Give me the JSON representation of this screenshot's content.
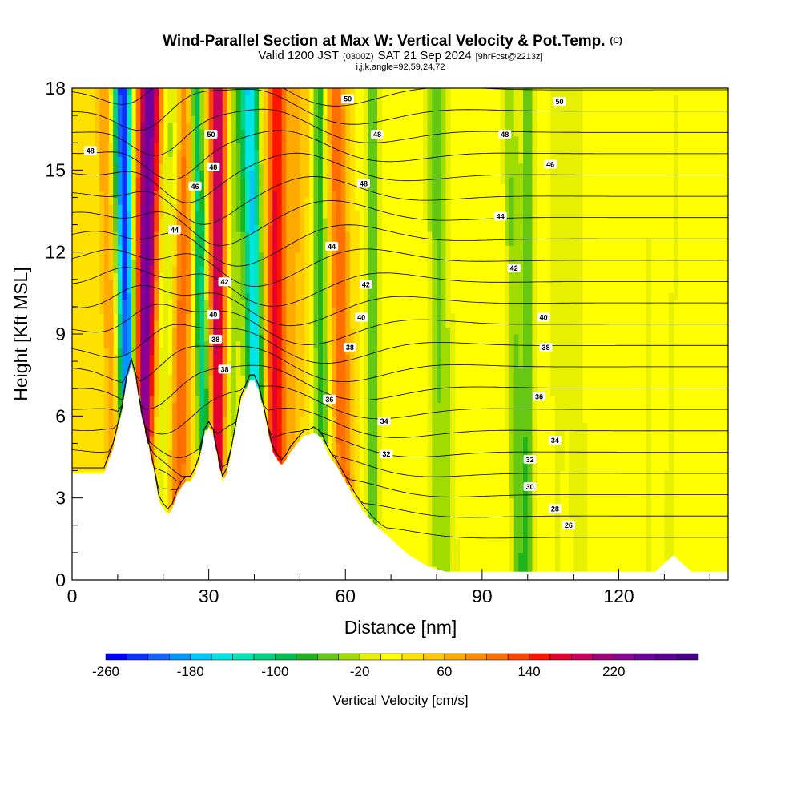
{
  "chart_data": {
    "type": "heatmap",
    "title": "Wind-Parallel Section at Max W: Vertical Velocity & Pot.Temp.",
    "title_mark": "(C)",
    "subtitle_main": "Valid 1200 JST",
    "subtitle_utc": "(0300Z)",
    "subtitle_date": "SAT 21 Sep 2024",
    "subtitle_fcst": "[9hrFcst@2213z]",
    "subtitle2": "i,j,k,angle=92,59,24,72",
    "xlabel": "Distance [nm]",
    "ylabel": "Height [Kft MSL]",
    "xlim": [
      0,
      144
    ],
    "ylim": [
      0,
      18
    ],
    "x_ticks": [
      0,
      30,
      60,
      90,
      120
    ],
    "y_ticks": [
      0,
      3,
      6,
      9,
      12,
      15,
      18
    ],
    "grid": false,
    "colorbar": {
      "label": "Vertical Velocity [cm/s]",
      "tick_labels": [
        "-260",
        "-180",
        "-100",
        "-20",
        "60",
        "140",
        "220"
      ],
      "tick_values": [
        -260,
        -180,
        -100,
        -20,
        60,
        140,
        220
      ],
      "min": -260,
      "max": 300,
      "step": 20,
      "colors": [
        "#0000ff",
        "#0a32ff",
        "#1464ff",
        "#0096ff",
        "#00c8ff",
        "#00e6e6",
        "#00e6b4",
        "#00d282",
        "#00be50",
        "#1eb41e",
        "#64c814",
        "#a0dc00",
        "#e6f000",
        "#ffff00",
        "#ffe100",
        "#ffc800",
        "#ffaa00",
        "#ff8c00",
        "#ff6e00",
        "#ff4600",
        "#ff1400",
        "#e6002d",
        "#c8005a",
        "#a00078",
        "#8c0096",
        "#6e00a0",
        "#5a0096",
        "#46008c"
      ]
    },
    "terrain_profile": {
      "x": [
        0,
        7,
        9,
        11,
        12,
        13,
        14,
        15,
        16,
        17,
        18,
        19,
        20,
        21,
        22,
        23,
        24,
        25,
        26,
        27,
        28,
        29,
        30,
        31,
        32,
        33,
        34,
        35,
        36,
        37,
        38,
        39,
        40,
        41,
        42,
        43,
        44,
        45,
        46,
        47,
        48,
        49,
        50,
        51,
        52,
        53,
        54,
        55,
        56,
        57,
        58,
        60,
        62,
        64,
        66,
        68,
        70,
        72,
        74,
        76,
        78,
        80,
        82,
        84,
        86,
        88,
        90,
        92,
        94,
        96,
        98,
        100,
        102,
        104,
        106,
        108,
        110,
        112,
        114,
        116,
        118,
        120,
        122,
        124,
        126,
        128,
        130,
        132,
        134,
        136,
        138,
        140,
        142,
        144
      ],
      "height_kft": [
        3.9,
        3.9,
        4.8,
        6.2,
        7.3,
        7.9,
        7.3,
        6.2,
        5.4,
        4.7,
        3.9,
        2.9,
        2.6,
        2.4,
        2.6,
        3.1,
        3.4,
        3.6,
        3.6,
        3.9,
        4.4,
        5.3,
        5.6,
        5.3,
        4.4,
        3.6,
        3.9,
        4.7,
        5.6,
        6.5,
        6.9,
        7.3,
        7.3,
        6.9,
        6.2,
        5.4,
        4.7,
        4.4,
        4.2,
        4.4,
        4.7,
        4.9,
        5.1,
        5.3,
        5.3,
        5.4,
        5.3,
        5.1,
        4.7,
        4.4,
        4.2,
        3.6,
        3.0,
        2.5,
        2.1,
        1.8,
        1.5,
        1.2,
        0.9,
        0.7,
        0.5,
        0.4,
        0.3,
        0.3,
        0.3,
        0.3,
        0.3,
        0.3,
        0.3,
        0.3,
        0.3,
        0.3,
        0.3,
        0.3,
        0.3,
        0.3,
        0.3,
        0.3,
        0.3,
        0.3,
        0.3,
        0.3,
        0.3,
        0.3,
        0.3,
        0.3,
        0.6,
        0.9,
        0.6,
        0.3,
        0.3,
        0.3,
        0.3,
        0.3
      ]
    },
    "w_features": [
      {
        "x_base": 13,
        "x_top": 11,
        "w": -260,
        "width": 2.0
      },
      {
        "x_base": 15,
        "x_top": 17,
        "w": 240,
        "width": 2.6
      },
      {
        "x_base": 10,
        "x_top": 7,
        "w": 60,
        "width": 1.8
      },
      {
        "x_base": 18,
        "x_top": 22,
        "w": -60,
        "width": 2.5
      },
      {
        "x_base": 23,
        "x_top": 25,
        "w": 100,
        "width": 2.2
      },
      {
        "x_base": 30,
        "x_top": 27,
        "w": -140,
        "width": 1.6
      },
      {
        "x_base": 32,
        "x_top": 32,
        "w": 180,
        "width": 2.0
      },
      {
        "x_base": 34,
        "x_top": 36,
        "w": -60,
        "width": 2.0
      },
      {
        "x_base": 41,
        "x_top": 39,
        "w": -180,
        "width": 2.0
      },
      {
        "x_base": 44,
        "x_top": 45,
        "w": 140,
        "width": 2.2
      },
      {
        "x_base": 47,
        "x_top": 50,
        "w": 40,
        "width": 3.0
      },
      {
        "x_base": 55,
        "x_top": 54,
        "w": -100,
        "width": 1.5
      },
      {
        "x_base": 60,
        "x_top": 58,
        "w": 100,
        "width": 2.0
      },
      {
        "x_base": 66,
        "x_top": 66,
        "w": -80,
        "width": 1.8
      },
      {
        "x_base": 80,
        "x_top": 80,
        "w": -40,
        "width": 2.5
      },
      {
        "x_base": 83,
        "x_top": 80,
        "w": -30,
        "width": 2.5
      },
      {
        "x_base": 98,
        "x_top": 96,
        "w": -60,
        "width": 1.8
      },
      {
        "x_base": 100,
        "x_top": 100,
        "w": -70,
        "width": 1.5
      },
      {
        "x_base": 106,
        "x_top": 106,
        "w": -20,
        "width": 4.0
      },
      {
        "x_base": 112,
        "x_top": 111,
        "w": -20,
        "width": 3.0
      },
      {
        "x_base": 126,
        "x_top": 127,
        "w": -20,
        "width": 3.0
      },
      {
        "x_base": 131,
        "x_top": 133,
        "w": -20,
        "width": 2.5
      }
    ],
    "theta_levels": [
      28,
      29,
      30,
      31,
      32,
      33,
      34,
      35,
      36,
      37,
      38,
      39,
      40,
      41,
      42,
      43,
      44,
      45,
      46,
      47,
      48,
      49,
      50
    ],
    "theta_labels": [
      {
        "text": "48",
        "x": 4,
        "y": 15.7
      },
      {
        "text": "50",
        "x": 30.5,
        "y": 16.3
      },
      {
        "text": "48",
        "x": 31,
        "y": 15.1
      },
      {
        "text": "46",
        "x": 27,
        "y": 14.4
      },
      {
        "text": "44",
        "x": 22.5,
        "y": 12.8
      },
      {
        "text": "42",
        "x": 33.5,
        "y": 10.9
      },
      {
        "text": "40",
        "x": 31,
        "y": 9.7
      },
      {
        "text": "38",
        "x": 31.5,
        "y": 8.8
      },
      {
        "text": "38",
        "x": 33.5,
        "y": 7.7
      },
      {
        "text": "50",
        "x": 60.5,
        "y": 17.6
      },
      {
        "text": "48",
        "x": 67,
        "y": 16.3
      },
      {
        "text": "48",
        "x": 64,
        "y": 14.5
      },
      {
        "text": "44",
        "x": 57,
        "y": 12.2
      },
      {
        "text": "42",
        "x": 64.5,
        "y": 10.8
      },
      {
        "text": "40",
        "x": 63.5,
        "y": 9.6
      },
      {
        "text": "38",
        "x": 61,
        "y": 8.5
      },
      {
        "text": "36",
        "x": 56.5,
        "y": 6.6
      },
      {
        "text": "34",
        "x": 68.5,
        "y": 5.8
      },
      {
        "text": "32",
        "x": 69,
        "y": 4.6
      },
      {
        "text": "50",
        "x": 107,
        "y": 17.5
      },
      {
        "text": "48",
        "x": 95,
        "y": 16.3
      },
      {
        "text": "46",
        "x": 105,
        "y": 15.2
      },
      {
        "text": "44",
        "x": 94,
        "y": 13.3
      },
      {
        "text": "42",
        "x": 97,
        "y": 11.4
      },
      {
        "text": "40",
        "x": 103.5,
        "y": 9.6
      },
      {
        "text": "38",
        "x": 104,
        "y": 8.5
      },
      {
        "text": "36",
        "x": 102.5,
        "y": 6.7
      },
      {
        "text": "34",
        "x": 106,
        "y": 5.1
      },
      {
        "text": "32",
        "x": 100.5,
        "y": 4.4
      },
      {
        "text": "30",
        "x": 100.5,
        "y": 3.4
      },
      {
        "text": "28",
        "x": 106,
        "y": 2.6
      },
      {
        "text": "26",
        "x": 109,
        "y": 2.0
      }
    ]
  }
}
